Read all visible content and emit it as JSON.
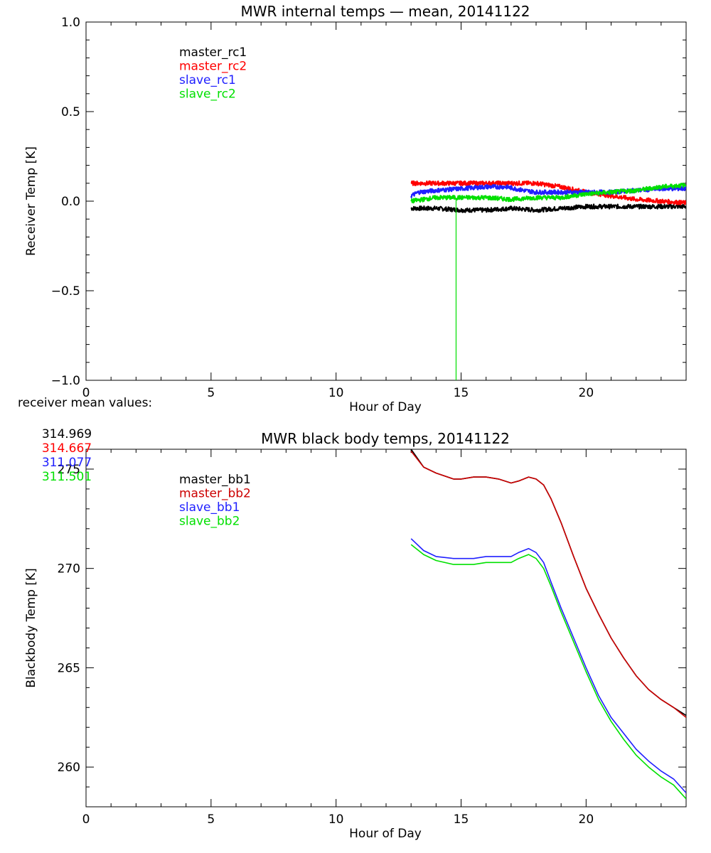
{
  "chart_data": [
    {
      "type": "line",
      "title": "MWR internal temps — mean, 20141122",
      "xlabel": "Hour of Day",
      "ylabel": "Receiver Temp [K]",
      "xlim": [
        0,
        24
      ],
      "ylim": [
        -1.0,
        1.0
      ],
      "x_ticks": [
        0,
        5,
        10,
        15,
        20
      ],
      "x_tick_labels": [
        "0",
        "5",
        "10",
        "15",
        "20"
      ],
      "y_ticks": [
        -1.0,
        -0.5,
        0.0,
        0.5,
        1.0
      ],
      "y_tick_labels": [
        "−1.0",
        "−0.5",
        "0.0",
        "0.5",
        "1.0"
      ],
      "legend_position": "top-left",
      "noisy": true,
      "series": [
        {
          "name": "master_rc1",
          "color": "#000000",
          "x": [
            13.0,
            14.0,
            15.0,
            16.0,
            17.0,
            18.0,
            19.0,
            20.0,
            21.0,
            22.0,
            23.0,
            24.0
          ],
          "y": [
            -0.04,
            -0.04,
            -0.05,
            -0.05,
            -0.04,
            -0.05,
            -0.04,
            -0.03,
            -0.03,
            -0.03,
            -0.03,
            -0.03
          ]
        },
        {
          "name": "master_rc2",
          "color": "#ff0000",
          "x": [
            13.0,
            14.0,
            15.0,
            16.0,
            17.0,
            18.0,
            19.0,
            20.0,
            21.0,
            22.0,
            23.0,
            24.0
          ],
          "y": [
            0.1,
            0.1,
            0.1,
            0.1,
            0.1,
            0.1,
            0.08,
            0.05,
            0.03,
            0.01,
            0.0,
            -0.01
          ]
        },
        {
          "name": "slave_rc1",
          "color": "#2020ff",
          "x": [
            13.0,
            13.3,
            14.0,
            15.0,
            16.0,
            16.8,
            17.5,
            18.0,
            19.0,
            20.0,
            21.0,
            22.0,
            23.0,
            24.0
          ],
          "y": [
            0.03,
            0.05,
            0.06,
            0.07,
            0.08,
            0.08,
            0.06,
            0.05,
            0.05,
            0.05,
            0.05,
            0.06,
            0.07,
            0.07
          ]
        },
        {
          "name": "slave_rc2",
          "color": "#00e000",
          "x": [
            13.0,
            13.5,
            14.0,
            15.0,
            16.0,
            17.0,
            18.0,
            19.0,
            20.0,
            21.0,
            22.0,
            23.0,
            24.0
          ],
          "y": [
            0.0,
            0.01,
            0.02,
            0.02,
            0.02,
            0.01,
            0.02,
            0.02,
            0.04,
            0.05,
            0.06,
            0.08,
            0.09
          ],
          "spike": {
            "x": 14.8,
            "y": -1.0
          }
        }
      ]
    },
    {
      "type": "line",
      "title": "MWR black body temps, 20141122",
      "xlabel": "Hour of Day",
      "ylabel": "Blackbody Temp [K]",
      "xlim": [
        0,
        24
      ],
      "ylim": [
        258,
        276
      ],
      "x_ticks": [
        0,
        5,
        10,
        15,
        20
      ],
      "x_tick_labels": [
        "0",
        "5",
        "10",
        "15",
        "20"
      ],
      "y_ticks": [
        260,
        265,
        270,
        275
      ],
      "y_tick_labels": [
        "260",
        "265",
        "270",
        "275"
      ],
      "legend_position": "top-left",
      "noisy": false,
      "series": [
        {
          "name": "master_bb1",
          "color": "#000000",
          "x": [
            13.0,
            13.5,
            14.0,
            14.7,
            15.0,
            15.5,
            16.0,
            16.5,
            17.0,
            17.3,
            17.7,
            18.0,
            18.3,
            18.6,
            19.0,
            19.5,
            20.0,
            20.5,
            21.0,
            21.5,
            22.0,
            22.5,
            23.0,
            23.5,
            24.0
          ],
          "y": [
            276.0,
            275.1,
            274.8,
            274.5,
            274.5,
            274.6,
            274.6,
            274.5,
            274.3,
            274.4,
            274.6,
            274.5,
            274.2,
            273.5,
            272.3,
            270.6,
            269.0,
            267.7,
            266.5,
            265.5,
            264.6,
            263.9,
            263.4,
            263.0,
            262.6
          ]
        },
        {
          "name": "master_bb2",
          "color": "#cc0000",
          "x": [
            13.0,
            13.5,
            14.0,
            14.7,
            15.0,
            15.5,
            16.0,
            16.5,
            17.0,
            17.3,
            17.7,
            18.0,
            18.3,
            18.6,
            19.0,
            19.5,
            20.0,
            20.5,
            21.0,
            21.5,
            22.0,
            22.5,
            23.0,
            23.5,
            24.0
          ],
          "y": [
            275.9,
            275.1,
            274.8,
            274.5,
            274.5,
            274.6,
            274.6,
            274.5,
            274.3,
            274.4,
            274.6,
            274.5,
            274.2,
            273.5,
            272.3,
            270.6,
            269.0,
            267.7,
            266.5,
            265.5,
            264.6,
            263.9,
            263.4,
            263.0,
            262.5
          ]
        },
        {
          "name": "slave_bb1",
          "color": "#2020ff",
          "x": [
            13.0,
            13.5,
            14.0,
            14.7,
            15.0,
            15.5,
            16.0,
            16.5,
            17.0,
            17.3,
            17.7,
            18.0,
            18.3,
            18.6,
            19.0,
            19.5,
            20.0,
            20.5,
            21.0,
            21.5,
            22.0,
            22.5,
            23.0,
            23.5,
            24.0
          ],
          "y": [
            271.5,
            270.9,
            270.6,
            270.5,
            270.5,
            270.5,
            270.6,
            270.6,
            270.6,
            270.8,
            271.0,
            270.8,
            270.3,
            269.3,
            268.0,
            266.5,
            265.0,
            263.6,
            262.5,
            261.7,
            260.9,
            260.3,
            259.8,
            259.4,
            258.7
          ]
        },
        {
          "name": "slave_bb2",
          "color": "#00e000",
          "x": [
            13.0,
            13.5,
            14.0,
            14.7,
            15.0,
            15.5,
            16.0,
            16.5,
            17.0,
            17.3,
            17.7,
            18.0,
            18.3,
            18.6,
            19.0,
            19.5,
            20.0,
            20.5,
            21.0,
            21.5,
            22.0,
            22.5,
            23.0,
            23.5,
            24.0
          ],
          "y": [
            271.2,
            270.7,
            270.4,
            270.2,
            270.2,
            270.2,
            270.3,
            270.3,
            270.3,
            270.5,
            270.7,
            270.5,
            270.0,
            269.1,
            267.8,
            266.3,
            264.8,
            263.4,
            262.3,
            261.4,
            260.6,
            260.0,
            259.5,
            259.1,
            258.4
          ]
        }
      ]
    }
  ],
  "receiver_mean": {
    "label": "receiver mean values:",
    "values": [
      {
        "text": "314.969",
        "color": "#000000"
      },
      {
        "text": "314.667",
        "color": "#ff0000"
      },
      {
        "text": "311.077",
        "color": "#2020ff"
      },
      {
        "text": "311.501",
        "color": "#00e000"
      }
    ]
  }
}
